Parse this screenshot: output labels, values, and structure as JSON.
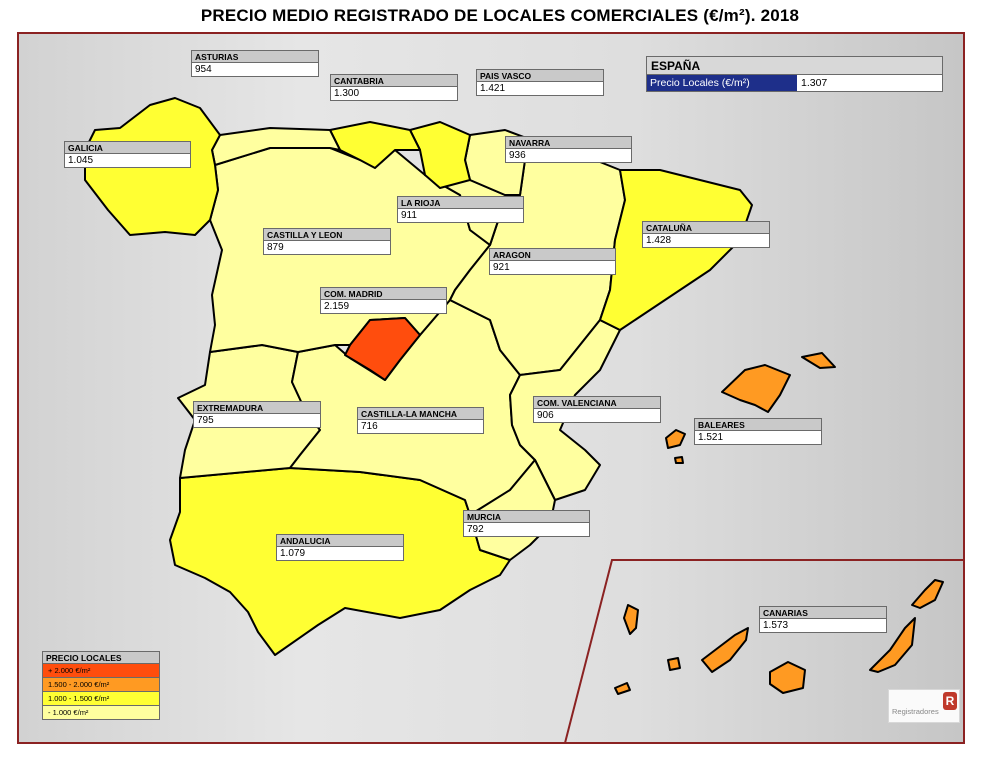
{
  "title": "PRECIO MEDIO REGISTRADO DE LOCALES COMERCIALES (€/m²). 2018",
  "spain": {
    "name": "ESPAÑA",
    "metric": "Precio Locales (€/m²)",
    "value": "1.307"
  },
  "regions": {
    "asturias": {
      "name": "ASTURIAS",
      "value": "954"
    },
    "cantabria": {
      "name": "CANTABRIA",
      "value": "1.300"
    },
    "pais_vasco": {
      "name": "PAIS VASCO",
      "value": "1.421"
    },
    "galicia": {
      "name": "GALICIA",
      "value": "1.045"
    },
    "navarra": {
      "name": "NAVARRA",
      "value": "936"
    },
    "la_rioja": {
      "name": "LA RIOJA",
      "value": "911"
    },
    "castilla_leon": {
      "name": "CASTILLA Y LEON",
      "value": "879"
    },
    "cataluna": {
      "name": "CATALUÑA",
      "value": "1.428"
    },
    "aragon": {
      "name": "ARAGON",
      "value": "921"
    },
    "madrid": {
      "name": "COM. MADRID",
      "value": "2.159"
    },
    "extremadura": {
      "name": "EXTREMADURA",
      "value": "795"
    },
    "castilla_la_mancha": {
      "name": "CASTILLA-LA MANCHA",
      "value": "716"
    },
    "valenciana": {
      "name": "COM. VALENCIANA",
      "value": "906"
    },
    "baleares": {
      "name": "BALEARES",
      "value": "1.521"
    },
    "murcia": {
      "name": "MURCIA",
      "value": "792"
    },
    "andalucia": {
      "name": "ANDALUCIA",
      "value": "1.079"
    },
    "canarias": {
      "name": "CANARIAS",
      "value": "1.573"
    }
  },
  "legend": {
    "title": "PRECIO LOCALES",
    "items": [
      "+ 2.000 €/m²",
      "1.500 - 2.000 €/m²",
      "1.000 - 1.500 €/m²",
      "- 1.000 €/m²"
    ]
  },
  "colors": {
    "over_2000": "#ff4d0d",
    "c1500_2000": "#ff9a22",
    "c1000_1500": "#ffff33",
    "under_1000": "#ffff9f"
  },
  "logo": {
    "text": "Registradores"
  }
}
